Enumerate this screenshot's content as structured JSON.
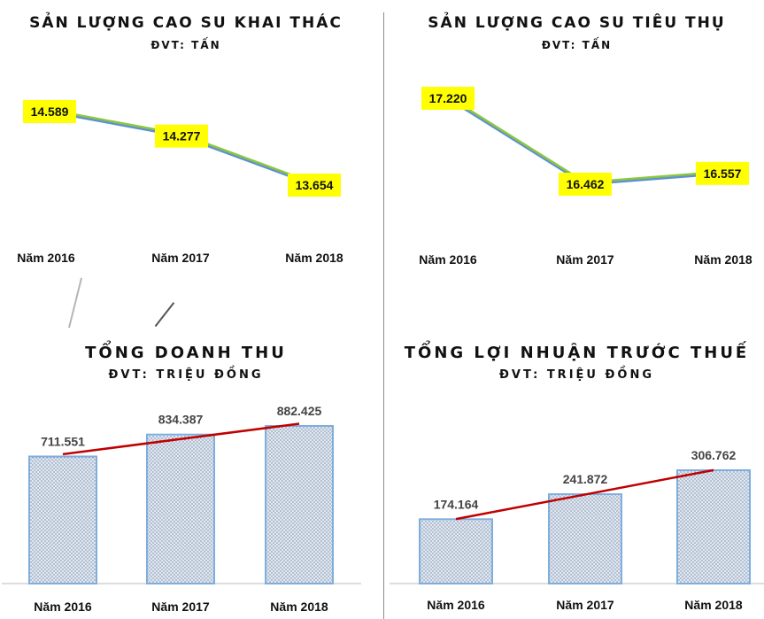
{
  "colors": {
    "line_blue": "#5b8fd6",
    "line_green": "#8cc63f",
    "label_bg": "#ffff00",
    "trend_red": "#c00000",
    "bar_fill": "#dde8f7",
    "bar_border": "#7eaede"
  },
  "chart_data": [
    {
      "type": "line",
      "title": "SẢN LƯỢNG CAO SU KHAI THÁC",
      "subtitle": "ĐVT: TẤN",
      "categories": [
        "Năm 2016",
        "Năm 2017",
        "Năm 2018"
      ],
      "values": [
        14589,
        14277,
        13654
      ],
      "value_labels": [
        "14.589",
        "14.277",
        "13.654"
      ]
    },
    {
      "type": "line",
      "title": "SẢN LƯỢNG CAO SU TIÊU THỤ",
      "subtitle": "ĐVT: TẤN",
      "categories": [
        "Năm 2016",
        "Năm 2017",
        "Năm 2018"
      ],
      "values": [
        17220,
        16462,
        16557
      ],
      "value_labels": [
        "17.220",
        "16.462",
        "16.557"
      ]
    },
    {
      "type": "bar",
      "title": "TỔNG DOANH THU",
      "subtitle": "ĐVT: TRIỆU ĐỒNG",
      "categories": [
        "Năm 2016",
        "Năm 2017",
        "Năm 2018"
      ],
      "values": [
        711551,
        834387,
        882425
      ],
      "value_labels": [
        "711.551",
        "834.387",
        "882.425"
      ],
      "trendline": true
    },
    {
      "type": "bar",
      "title": "TỔNG LỢI NHUẬN TRƯỚC THUẾ",
      "subtitle": "ĐVT: TRIỆU ĐỒNG",
      "categories": [
        "Năm 2016",
        "Năm 2017",
        "Năm 2018"
      ],
      "values": [
        174164,
        241872,
        306762
      ],
      "value_labels": [
        "174.164",
        "241.872",
        "306.762"
      ],
      "trendline": true
    }
  ]
}
